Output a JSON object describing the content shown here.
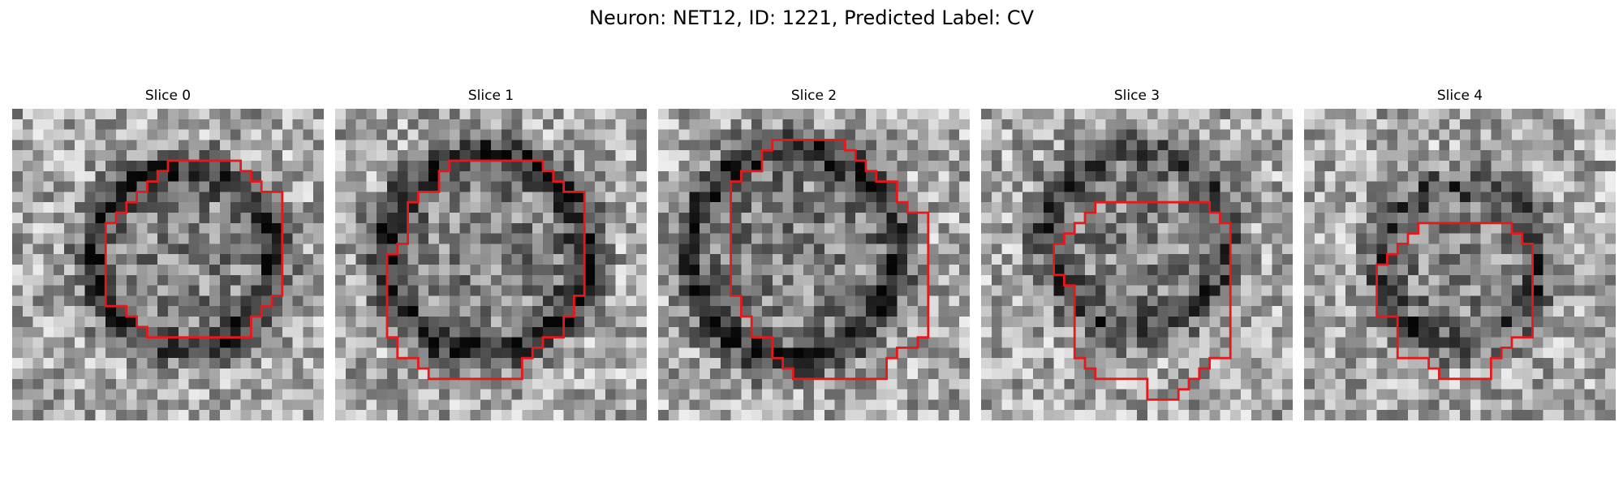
{
  "figure": {
    "title": "Neuron: NET12, ID: 1221, Predicted Label: CV",
    "contour_color": "#e31a1c",
    "colormap": "grayscale"
  },
  "slices": [
    {
      "title": "Slice 0",
      "ring_darkness": 0.75,
      "seed": 11
    },
    {
      "title": "Slice 1",
      "ring_darkness": 0.85,
      "seed": 23
    },
    {
      "title": "Slice 2",
      "ring_darkness": 0.8,
      "seed": 37
    },
    {
      "title": "Slice 3",
      "ring_darkness": 0.6,
      "seed": 41
    },
    {
      "title": "Slice 4",
      "ring_darkness": 0.55,
      "seed": 53
    }
  ]
}
